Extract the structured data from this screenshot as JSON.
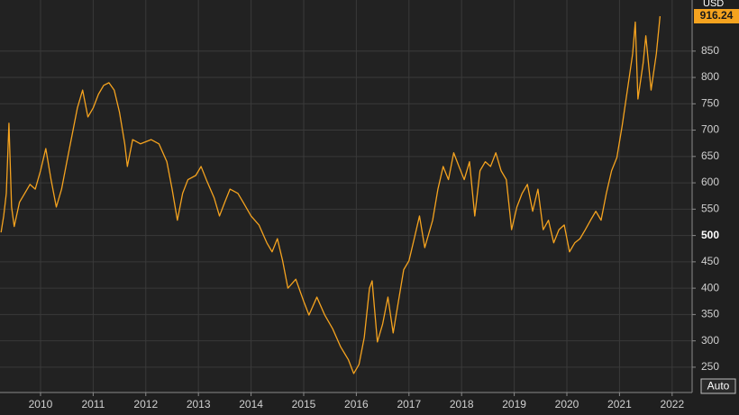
{
  "chart_data": {
    "type": "line",
    "axis_label": "USD",
    "color": "#f5a31f",
    "x": [
      2009.25,
      2009.3,
      2009.35,
      2009.4,
      2009.45,
      2009.5,
      2009.6,
      2009.7,
      2009.8,
      2009.9,
      2010.0,
      2010.1,
      2010.2,
      2010.3,
      2010.4,
      2010.5,
      2010.6,
      2010.7,
      2010.8,
      2010.9,
      2011.0,
      2011.1,
      2011.2,
      2011.3,
      2011.4,
      2011.5,
      2011.6,
      2011.65,
      2011.75,
      2011.9,
      2012.1,
      2012.25,
      2012.4,
      2012.5,
      2012.6,
      2012.7,
      2012.8,
      2012.95,
      2013.05,
      2013.15,
      2013.3,
      2013.4,
      2013.5,
      2013.6,
      2013.75,
      2013.85,
      2014.0,
      2014.15,
      2014.3,
      2014.4,
      2014.5,
      2014.6,
      2014.7,
      2014.85,
      2015.0,
      2015.1,
      2015.25,
      2015.4,
      2015.55,
      2015.7,
      2015.85,
      2015.95,
      2016.05,
      2016.15,
      2016.25,
      2016.3,
      2016.4,
      2016.5,
      2016.6,
      2016.7,
      2016.8,
      2016.9,
      2017.0,
      2017.1,
      2017.2,
      2017.3,
      2017.45,
      2017.55,
      2017.65,
      2017.75,
      2017.85,
      2017.95,
      2018.05,
      2018.15,
      2018.25,
      2018.35,
      2018.45,
      2018.55,
      2018.65,
      2018.75,
      2018.85,
      2018.95,
      2019.05,
      2019.15,
      2019.25,
      2019.35,
      2019.45,
      2019.55,
      2019.65,
      2019.75,
      2019.85,
      2019.95,
      2020.05,
      2020.15,
      2020.25,
      2020.35,
      2020.45,
      2020.55,
      2020.65,
      2020.75,
      2020.85,
      2020.95,
      2021.05,
      2021.15,
      2021.25,
      2021.3,
      2021.35,
      2021.45,
      2021.5,
      2021.6,
      2021.7,
      2021.77
    ],
    "values": [
      506,
      537,
      580,
      713,
      554,
      517,
      563,
      580,
      597,
      588,
      623,
      665,
      606,
      554,
      588,
      640,
      691,
      742,
      776,
      725,
      742,
      768,
      785,
      790,
      776,
      734,
      674,
      631,
      682,
      674,
      682,
      674,
      640,
      588,
      529,
      580,
      606,
      614,
      631,
      606,
      571,
      537,
      563,
      588,
      580,
      563,
      537,
      520,
      486,
      469,
      494,
      452,
      400,
      417,
      375,
      349,
      383,
      349,
      323,
      289,
      264,
      238,
      255,
      306,
      400,
      414,
      298,
      332,
      383,
      315,
      375,
      435,
      452,
      494,
      537,
      477,
      529,
      588,
      631,
      606,
      657,
      631,
      606,
      640,
      537,
      623,
      640,
      631,
      657,
      623,
      606,
      511,
      554,
      580,
      597,
      546,
      588,
      511,
      529,
      486,
      511,
      520,
      469,
      486,
      494,
      511,
      529,
      546,
      529,
      580,
      623,
      648,
      708,
      776,
      845,
      905,
      759,
      828,
      879,
      776,
      845,
      916.24
    ],
    "xlim": [
      2009.23,
      2022.38
    ],
    "xticks": [
      2010,
      2011,
      2012,
      2013,
      2014,
      2015,
      2016,
      2017,
      2018,
      2019,
      2020,
      2021,
      2022
    ],
    "ylim": [
      202,
      947
    ],
    "yticks": [
      250,
      300,
      350,
      400,
      450,
      500,
      550,
      600,
      650,
      700,
      750,
      800,
      850
    ],
    "emphasized_ytick": 500,
    "grid": true
  },
  "controls": {
    "auto_button": "Auto"
  }
}
